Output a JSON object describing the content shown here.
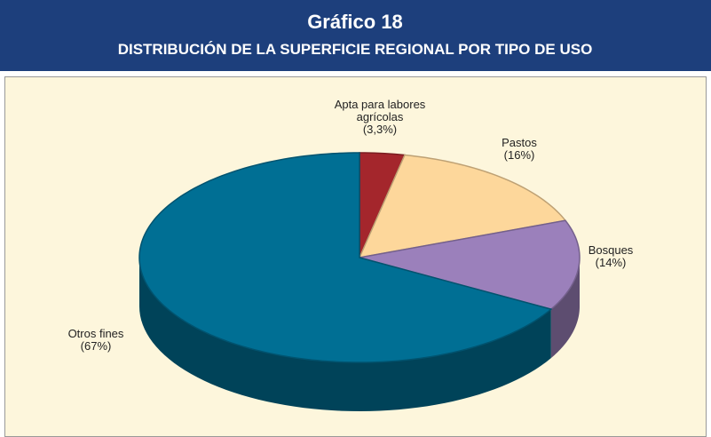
{
  "chart_data": {
    "type": "pie3d",
    "title": "Gráfico 18",
    "subtitle": "DISTRIBUCIÓN DE LA SUPERFICIE REGIONAL POR TIPO DE USO",
    "categories": [
      "Apta para labores agrícolas",
      "Pastos",
      "Bosques",
      "Otros fines"
    ],
    "values": [
      3.3,
      16,
      14,
      67
    ],
    "value_labels": [
      "(3,3%)",
      "(16%)",
      "(14%)",
      "(67%)"
    ],
    "colors": [
      "#a4262c",
      "#fdd79b",
      "#9b80bb",
      "#006f94"
    ]
  }
}
